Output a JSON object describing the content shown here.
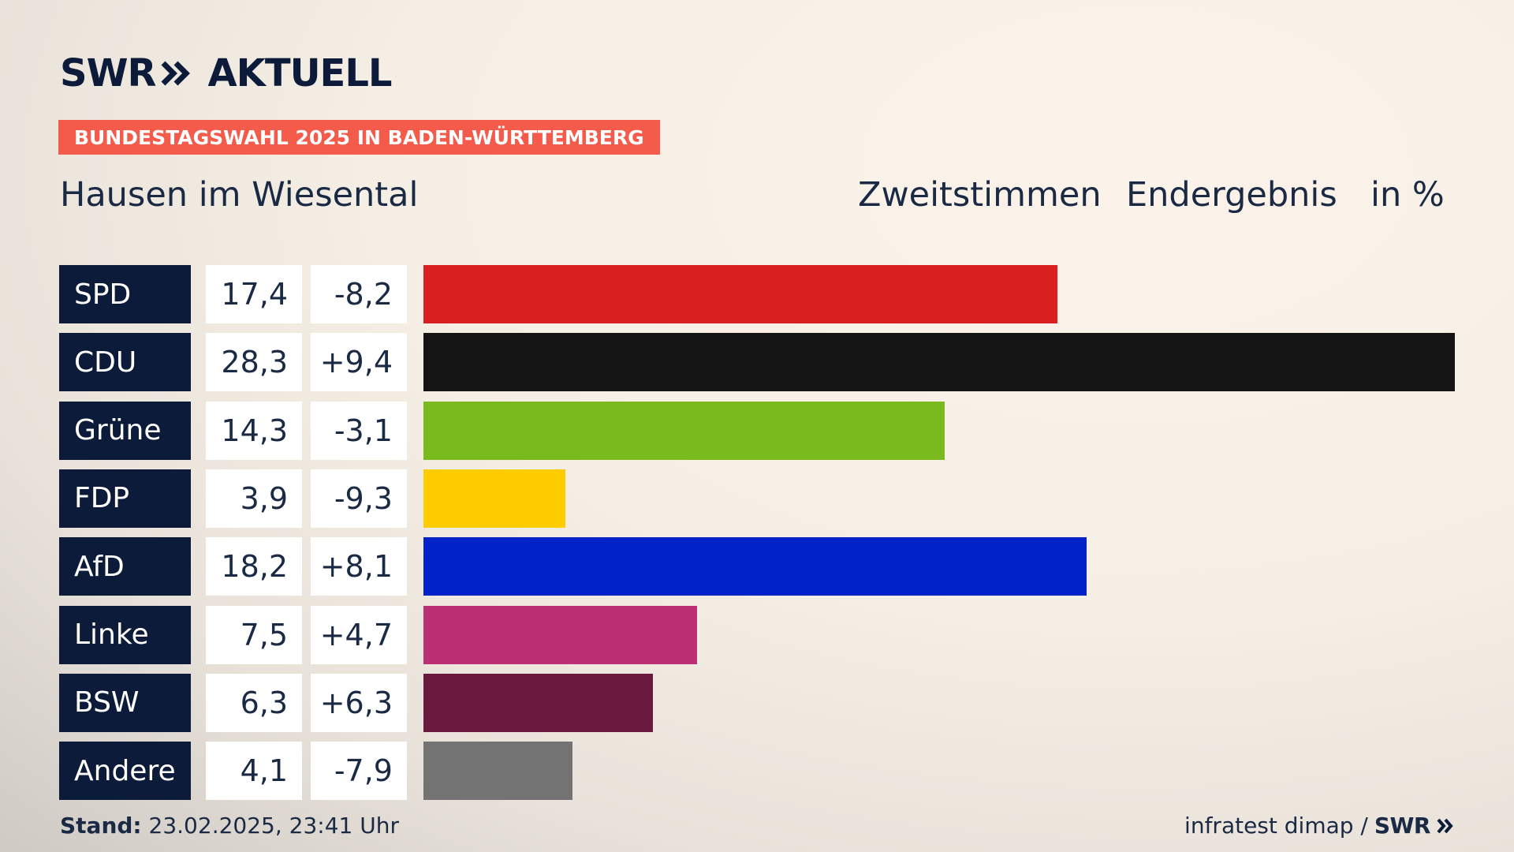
{
  "brand": {
    "logo_left": "SWR",
    "logo_right": "AKTUELL"
  },
  "tag": "BUNDESTAGSWAHL 2025 IN BADEN-WÜRTTEMBERG",
  "place": "Hausen im Wiesental",
  "header": {
    "vote_type": "Zweitstimmen",
    "status": "Endergebnis",
    "unit": "in %"
  },
  "footer": {
    "stand_label": "Stand:",
    "stand_value": "23.02.2025, 23:41 Uhr",
    "source": "infratest dimap /",
    "source_brand": "SWR"
  },
  "chart_data": {
    "type": "bar",
    "orientation": "horizontal",
    "title": "Hausen im Wiesental",
    "xlim": [
      0,
      28.3
    ],
    "grid": false,
    "rows": [
      {
        "party": "SPD",
        "value": "17,4",
        "diff": "-8,2",
        "v": 17.4,
        "color": "#d91f1f"
      },
      {
        "party": "CDU",
        "value": "28,3",
        "diff": "+9,4",
        "v": 28.3,
        "color": "#141414"
      },
      {
        "party": "Grüne",
        "value": "14,3",
        "diff": "-3,1",
        "v": 14.3,
        "color": "#7aba1e"
      },
      {
        "party": "FDP",
        "value": "3,9",
        "diff": "-9,3",
        "v": 3.9,
        "color": "#ffcc00"
      },
      {
        "party": "AfD",
        "value": "18,2",
        "diff": "+8,1",
        "v": 18.2,
        "color": "#0022c8"
      },
      {
        "party": "Linke",
        "value": "7,5",
        "diff": "+4,7",
        "v": 7.5,
        "color": "#bb2f75"
      },
      {
        "party": "BSW",
        "value": "6,3",
        "diff": "+6,3",
        "v": 6.3,
        "color": "#6a1a3e"
      },
      {
        "party": "Andere",
        "value": "4,1",
        "diff": "-7,9",
        "v": 4.1,
        "color": "#737373"
      }
    ]
  }
}
